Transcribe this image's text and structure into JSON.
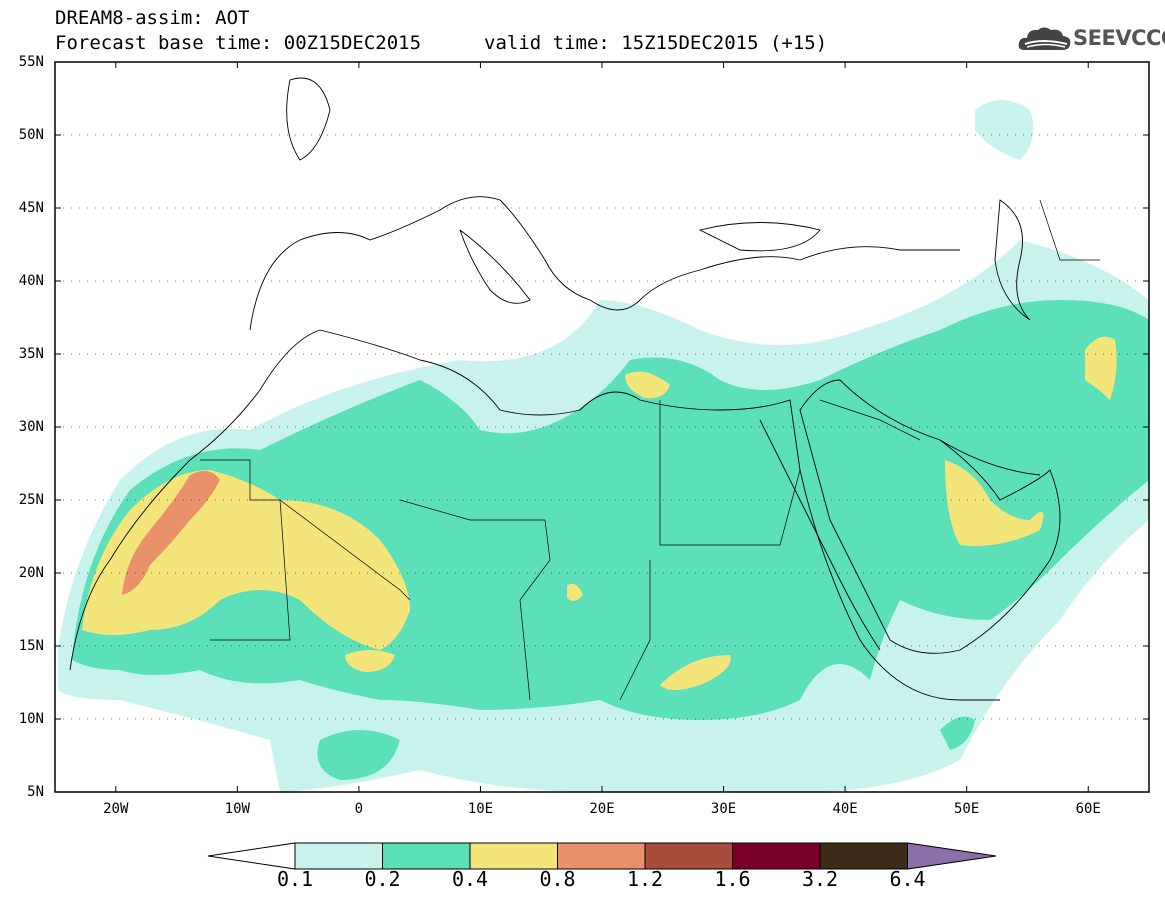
{
  "title": {
    "line1": "DREAM8-assim: AOT",
    "line2": "Forecast base time: 00Z15DEC2015",
    "valid": "valid time: 15Z15DEC2015 (+15)"
  },
  "logo": {
    "text": "SEEVCCC",
    "icon": "cloud-icon"
  },
  "map": {
    "lon_range": [
      -25,
      65
    ],
    "lat_range": [
      5,
      55
    ],
    "lat_labels": [
      "55N",
      "50N",
      "45N",
      "40N",
      "35N",
      "30N",
      "25N",
      "20N",
      "15N",
      "10N",
      "5N"
    ],
    "lon_labels": [
      "20W",
      "10W",
      "0",
      "10E",
      "20E",
      "30E",
      "40E",
      "50E",
      "60E"
    ]
  },
  "colorbar": {
    "labels": [
      "0.1",
      "0.2",
      "0.4",
      "0.8",
      "1.2",
      "1.6",
      "3.2",
      "6.4"
    ],
    "colors": [
      "#ffffff",
      "#c8f2ec",
      "#5ce0ba",
      "#f3e57a",
      "#e9916a",
      "#a84c3e",
      "#7a0028",
      "#3d2a18",
      "#8b6fa8"
    ]
  }
}
